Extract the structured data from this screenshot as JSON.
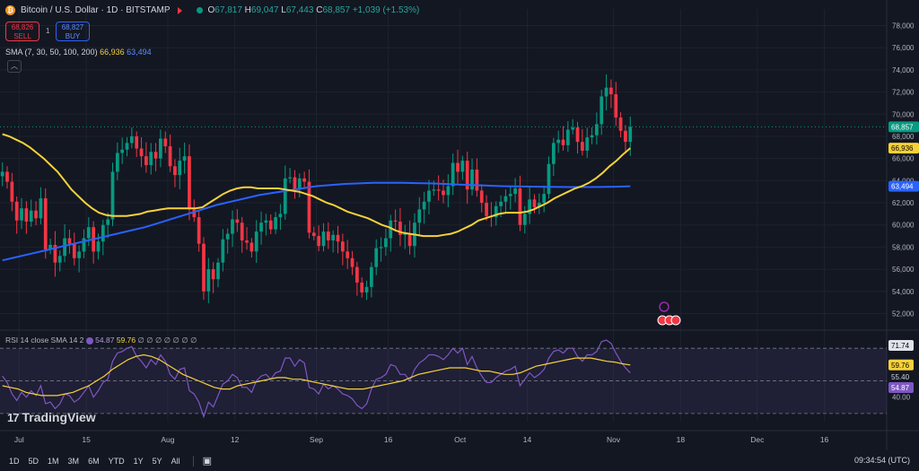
{
  "header": {
    "symbol": "Bitcoin / U.S. Dollar · 1D · BITSTAMP",
    "o_label": "O",
    "o": "67,817",
    "h_label": "H",
    "h": "69,047",
    "l_label": "L",
    "l": "67,443",
    "c_label": "C",
    "c": "68,857",
    "change": "+1,039 (+1.53%)"
  },
  "trade": {
    "sell_price": "68,826",
    "sell_label": "SELL",
    "spread": "1",
    "buy_price": "68,827",
    "buy_label": "BUY"
  },
  "sma_legend": {
    "label": "SMA (7, 30, 50, 100, 200)",
    "v1": "66,936",
    "v2": "63,494"
  },
  "rsi_legend": {
    "label": "RSI 14 close SMA 14 2",
    "v1": "54.87",
    "v2": "59.76",
    "dots": "∅ ∅ ∅ ∅ ∅ ∅ ∅"
  },
  "brand": "TradingView",
  "ranges": [
    "1D",
    "5D",
    "1M",
    "3M",
    "6M",
    "YTD",
    "1Y",
    "5Y",
    "All"
  ],
  "clock": "09:34:54 (UTC)",
  "colors": {
    "bg": "#131722",
    "up": "#089981",
    "down": "#f23645",
    "sma_fast": "#f7d13a",
    "sma_slow": "#2962ff",
    "rsi": "#7e57c2"
  },
  "chart_data": [
    {
      "type": "candlestick",
      "title": "Bitcoin / U.S. Dollar · 1D · BITSTAMP",
      "x_ticks": [
        "Jul",
        "15",
        "Aug",
        "12",
        "Sep",
        "16",
        "Oct",
        "14",
        "Nov",
        "18",
        "Dec",
        "16"
      ],
      "y_ticks": [
        "52,000",
        "54,000",
        "56,000",
        "58,000",
        "60,000",
        "62,000",
        "64,000",
        "66,000",
        "68,000",
        "70,000",
        "72,000",
        "74,000",
        "76,000",
        "78,000"
      ],
      "ylim": [
        50500,
        79500
      ],
      "x_tick_days": [
        4,
        18,
        35,
        49,
        66,
        81,
        96,
        110,
        128,
        142,
        158,
        172
      ],
      "closes": [
        64800,
        63900,
        62100,
        60400,
        61500,
        60300,
        61300,
        60600,
        62400,
        57800,
        58200,
        56600,
        57200,
        58800,
        58300,
        57000,
        57600,
        58800,
        59800,
        57600,
        58500,
        60000,
        60500,
        64800,
        66500,
        66800,
        67400,
        68000,
        66900,
        66200,
        65400,
        66600,
        66000,
        67800,
        67100,
        65300,
        64500,
        65800,
        66200,
        61400,
        60700,
        58300,
        54000,
        56000,
        55100,
        56600,
        58700,
        59200,
        60500,
        60200,
        58600,
        58400,
        57600,
        59400,
        60200,
        60400,
        59600,
        60700,
        61000,
        64200,
        64300,
        63200,
        64200,
        63900,
        59300,
        59000,
        58100,
        59400,
        58600,
        59100,
        58500,
        57600,
        57000,
        56200,
        54800,
        53900,
        54400,
        56200,
        57900,
        58000,
        58800,
        60400,
        60300,
        59100,
        59200,
        58100,
        60200,
        61400,
        62100,
        63100,
        63200,
        63100,
        62700,
        63500,
        65600,
        64800,
        65800,
        63200,
        65000,
        63100,
        62000,
        60800,
        60700,
        61700,
        62100,
        62600,
        62800,
        63300,
        60000,
        61000,
        62300,
        61600,
        62000,
        62800,
        65500,
        67400,
        67700,
        67200,
        68600,
        68800,
        67500,
        66700,
        67900,
        68100,
        69100,
        71600,
        72400,
        71800,
        69700,
        68500,
        67500,
        68857
      ],
      "series": [
        {
          "name": "SMA fast",
          "values": [
            68200,
            68000,
            67700,
            67400,
            67000,
            66500,
            66000,
            65400,
            64800,
            64000,
            63200,
            62600,
            62000,
            61500,
            61100,
            60900,
            60800,
            60800,
            60800,
            60900,
            61000,
            61200,
            61300,
            61400,
            61500,
            61500,
            61500,
            61500,
            61500,
            61600,
            62000,
            62400,
            62800,
            63100,
            63300,
            63400,
            63400,
            63300,
            63300,
            63300,
            63300,
            63200,
            63100,
            63000,
            62800,
            62600,
            62300,
            62000,
            61800,
            61500,
            61200,
            61000,
            60800,
            60600,
            60300,
            60000,
            59800,
            59500,
            59300,
            59200,
            59100,
            59000,
            59000,
            59000,
            59100,
            59200,
            59400,
            59700,
            60000,
            60400,
            60600,
            60800,
            61000,
            61100,
            61100,
            61100,
            61200,
            61400,
            61700,
            62000,
            62400,
            62700,
            63000,
            63300,
            63500,
            63800,
            64200,
            64700,
            65300,
            65800,
            66400,
            66936
          ]
        },
        {
          "name": "SMA slow",
          "values": [
            56800,
            57100,
            57400,
            57700,
            58000,
            58300,
            58600,
            58900,
            59200,
            59500,
            59800,
            60200,
            60600,
            61000,
            61400,
            61800,
            62100,
            62400,
            62700,
            62900,
            63100,
            63300,
            63500,
            63600,
            63700,
            63750,
            63800,
            63800,
            63800,
            63780,
            63750,
            63700,
            63650,
            63600,
            63550,
            63500,
            63480,
            63460,
            63440,
            63430,
            63420,
            63420,
            63430,
            63450,
            63494
          ]
        }
      ],
      "last_price": "68,857",
      "sma_fast_last": "66,936",
      "sma_slow_last": "63,494"
    },
    {
      "type": "line",
      "title": "RSI 14 close SMA 14 2",
      "y_ticks": [
        "40.00"
      ],
      "ylim": [
        25,
        80
      ],
      "bands": [
        70,
        30
      ],
      "series": [
        {
          "name": "RSI",
          "values": [
            53,
            49,
            42,
            38,
            43,
            40,
            44,
            41,
            47,
            36,
            37,
            33,
            36,
            42,
            41,
            37,
            39,
            43,
            47,
            40,
            44,
            49,
            51,
            62,
            67,
            68,
            70,
            71,
            65,
            62,
            58,
            63,
            60,
            66,
            62,
            54,
            51,
            57,
            58,
            44,
            42,
            37,
            28,
            37,
            34,
            41,
            48,
            50,
            54,
            52,
            46,
            46,
            43,
            50,
            53,
            54,
            51,
            55,
            56,
            64,
            64,
            59,
            63,
            61,
            46,
            45,
            42,
            48,
            45,
            47,
            45,
            42,
            41,
            39,
            35,
            33,
            36,
            45,
            51,
            52,
            54,
            60,
            59,
            54,
            54,
            50,
            57,
            61,
            63,
            66,
            66,
            65,
            63,
            66,
            70,
            67,
            70,
            60,
            65,
            58,
            53,
            49,
            49,
            52,
            54,
            56,
            57,
            59,
            47,
            51,
            55,
            52,
            54,
            57,
            64,
            68,
            69,
            67,
            70,
            70,
            65,
            62,
            66,
            66,
            68,
            74,
            75,
            73,
            67,
            62,
            58,
            54.87
          ]
        },
        {
          "name": "RSI SMA",
          "values": [
            47,
            46,
            45,
            43,
            42,
            41,
            41,
            41,
            42,
            43,
            45,
            47,
            50,
            53,
            57,
            60,
            63,
            65,
            66,
            65,
            63,
            60,
            57,
            54,
            52,
            50,
            48,
            46,
            45,
            45,
            47,
            48,
            49,
            50,
            51,
            52,
            52,
            51,
            51,
            50,
            49,
            48,
            47,
            46,
            45,
            45,
            45,
            46,
            47,
            48,
            49,
            50,
            52,
            54,
            55,
            56,
            57,
            58,
            58,
            58,
            57,
            56,
            56,
            55,
            54,
            54,
            55,
            57,
            59,
            60,
            61,
            62,
            63,
            64,
            64,
            64,
            63,
            62,
            61.5,
            60.5,
            59.76
          ]
        }
      ],
      "rsi_last": "54.87",
      "sma_last": "59.76",
      "upper_label": "71.74",
      "mid_label": "55.40"
    }
  ]
}
